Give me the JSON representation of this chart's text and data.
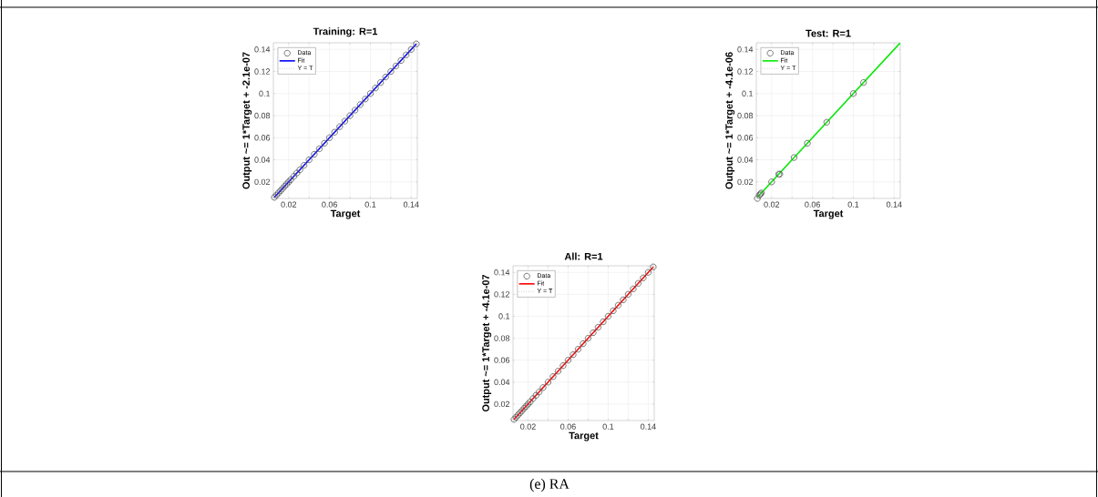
{
  "chart_data": [
    {
      "type": "scatter",
      "title": "Training: R=1",
      "xlabel": "Target",
      "ylabel": "Output ~= 1*Target + -2.1e-07",
      "xlim": [
        0.005,
        0.146
      ],
      "ylim": [
        0.005,
        0.146
      ],
      "xticks": [
        0.02,
        {
          "value": 0.04,
          "label": null
        },
        0.06,
        {
          "value": 0.08,
          "label": null
        },
        0.1,
        {
          "value": 0.12,
          "label": null
        },
        0.14
      ],
      "yticks": [
        0.02,
        0.04,
        0.06,
        0.08,
        0.1,
        0.12,
        0.14
      ],
      "grid": true,
      "legend": "top left",
      "series": [
        {
          "name": "Data",
          "type": "scatter",
          "marker": "circle",
          "color": "#555555",
          "x": [
            0.006,
            0.008,
            0.01,
            0.012,
            0.014,
            0.016,
            0.018,
            0.02,
            0.022,
            0.025,
            0.028,
            0.031,
            0.035,
            0.04,
            0.045,
            0.05,
            0.055,
            0.06,
            0.065,
            0.07,
            0.075,
            0.08,
            0.085,
            0.09,
            0.095,
            0.1,
            0.105,
            0.11,
            0.115,
            0.12,
            0.125,
            0.13,
            0.135,
            0.14,
            0.145
          ],
          "values": [
            0.006,
            0.008,
            0.01,
            0.012,
            0.014,
            0.016,
            0.018,
            0.02,
            0.022,
            0.025,
            0.028,
            0.031,
            0.035,
            0.04,
            0.045,
            0.05,
            0.055,
            0.06,
            0.065,
            0.07,
            0.075,
            0.08,
            0.085,
            0.09,
            0.095,
            0.1,
            0.105,
            0.11,
            0.115,
            0.12,
            0.125,
            0.13,
            0.135,
            0.14,
            0.145
          ]
        },
        {
          "name": "Fit",
          "type": "line",
          "line_style": "solid",
          "color": "#0000ff",
          "x": [
            0.006,
            0.145
          ],
          "values": [
            0.006,
            0.145
          ]
        },
        {
          "name": "Y = T",
          "type": "line",
          "line_style": "dotted",
          "color": "#808080",
          "x": [
            0.005,
            0.146
          ],
          "values": [
            0.005,
            0.146
          ]
        }
      ]
    },
    {
      "type": "scatter",
      "title": "Test: R=1",
      "xlabel": "Target",
      "ylabel": "Output ~= 1*Target + -4.1e-06",
      "xlim": [
        0.005,
        0.146
      ],
      "ylim": [
        0.005,
        0.146
      ],
      "xticks": [
        0.02,
        {
          "value": 0.04,
          "label": null
        },
        0.06,
        {
          "value": 0.08,
          "label": null
        },
        0.1,
        {
          "value": 0.12,
          "label": null
        },
        0.14
      ],
      "yticks": [
        0.02,
        0.04,
        0.06,
        0.08,
        0.1,
        0.12,
        0.14
      ],
      "grid": true,
      "legend": "top left",
      "series": [
        {
          "name": "Data",
          "type": "scatter",
          "marker": "circle",
          "color": "#555555",
          "x": [
            0.006,
            0.008,
            0.009,
            0.01,
            0.02,
            0.027,
            0.028,
            0.042,
            0.055,
            0.074,
            0.1,
            0.11
          ],
          "values": [
            0.005,
            0.008,
            0.009,
            0.01,
            0.02,
            0.027,
            0.027,
            0.042,
            0.055,
            0.074,
            0.1,
            0.11
          ]
        },
        {
          "name": "Fit",
          "type": "line",
          "line_style": "solid",
          "color": "#00ee00",
          "x": [
            0.006,
            0.146
          ],
          "values": [
            0.006,
            0.146
          ]
        },
        {
          "name": "Y = T",
          "type": "line",
          "line_style": "dotted",
          "color": "#808080",
          "x": [
            0.005,
            0.146
          ],
          "values": [
            0.005,
            0.146
          ]
        }
      ]
    },
    {
      "type": "scatter",
      "title": "All: R=1",
      "xlabel": "Target",
      "ylabel": "Output ~= 1*Target + -4.1e-07",
      "xlim": [
        0.005,
        0.146
      ],
      "ylim": [
        0.005,
        0.146
      ],
      "xticks": [
        0.02,
        {
          "value": 0.04,
          "label": null
        },
        0.06,
        {
          "value": 0.08,
          "label": null
        },
        0.1,
        {
          "value": 0.12,
          "label": null
        },
        0.14
      ],
      "yticks": [
        0.02,
        0.04,
        0.06,
        0.08,
        0.1,
        0.12,
        0.14
      ],
      "grid": true,
      "legend": "top left",
      "annotations": [
        "(e) RA"
      ],
      "series": [
        {
          "name": "Data",
          "type": "scatter",
          "marker": "circle",
          "color": "#555555",
          "x": [
            0.006,
            0.008,
            0.01,
            0.012,
            0.014,
            0.016,
            0.018,
            0.02,
            0.022,
            0.025,
            0.028,
            0.031,
            0.035,
            0.04,
            0.045,
            0.05,
            0.055,
            0.06,
            0.065,
            0.07,
            0.075,
            0.08,
            0.085,
            0.09,
            0.095,
            0.1,
            0.105,
            0.11,
            0.115,
            0.12,
            0.125,
            0.13,
            0.135,
            0.14,
            0.145
          ],
          "values": [
            0.006,
            0.008,
            0.01,
            0.012,
            0.014,
            0.016,
            0.018,
            0.02,
            0.022,
            0.025,
            0.028,
            0.031,
            0.035,
            0.04,
            0.045,
            0.05,
            0.055,
            0.06,
            0.065,
            0.07,
            0.075,
            0.08,
            0.085,
            0.09,
            0.095,
            0.1,
            0.105,
            0.11,
            0.115,
            0.12,
            0.125,
            0.13,
            0.135,
            0.14,
            0.145
          ]
        },
        {
          "name": "Fit",
          "type": "line",
          "line_style": "solid",
          "color": "#ff0000",
          "x": [
            0.006,
            0.145
          ],
          "values": [
            0.006,
            0.145
          ]
        },
        {
          "name": "Y = T",
          "type": "line",
          "line_style": "dotted",
          "color": "#808080",
          "x": [
            0.005,
            0.146
          ],
          "values": [
            0.005,
            0.146
          ]
        }
      ]
    }
  ]
}
